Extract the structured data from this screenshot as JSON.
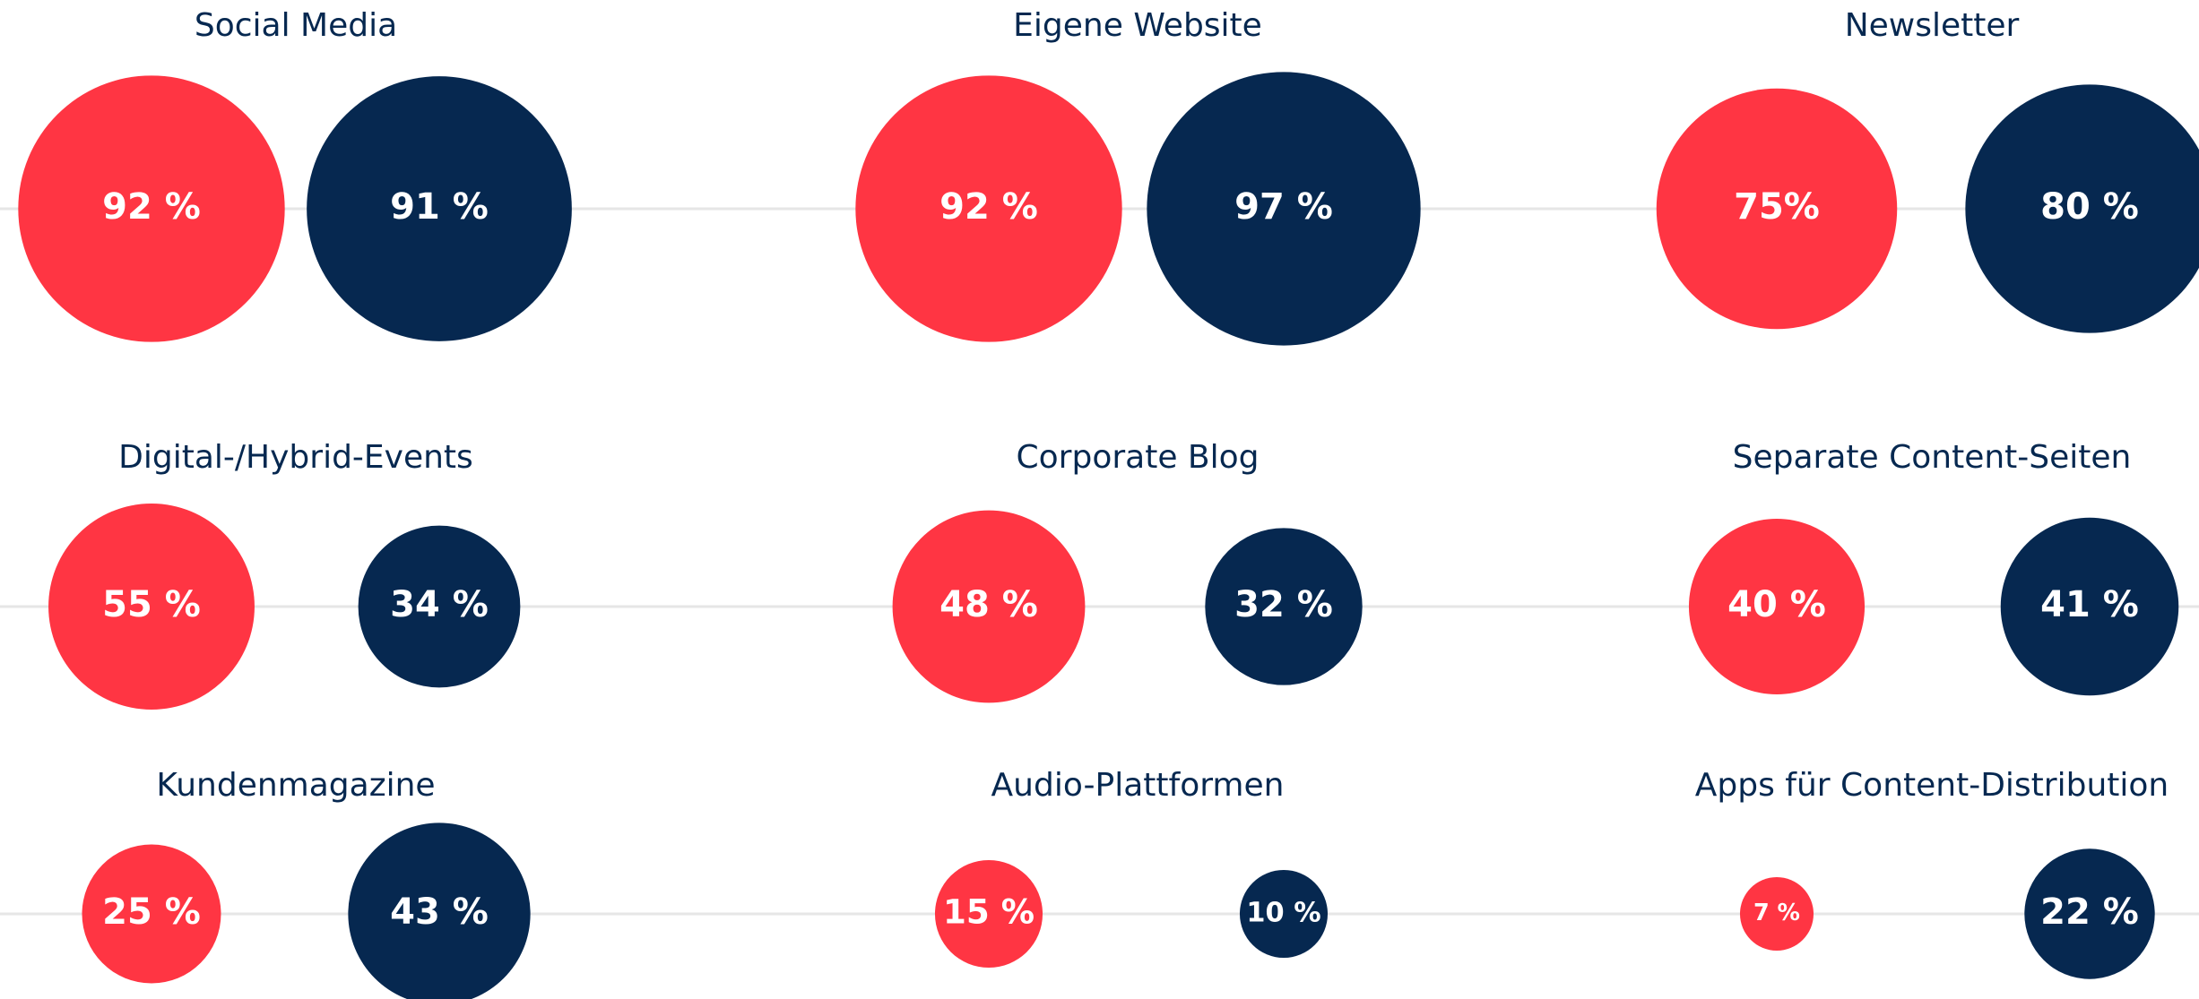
{
  "chart_data": {
    "type": "bubble",
    "categories": [
      "Social Media",
      "Eigene Website",
      "Newsletter",
      "Digital-/Hybrid-Events",
      "Corporate Blog",
      "Separate Content-Seiten",
      "Kundenmagazine",
      "Audio-Plattformen",
      "Apps für Content-Distribution"
    ],
    "series": [
      {
        "color": "#ff3543",
        "values": [
          92,
          92,
          75,
          55,
          48,
          40,
          25,
          15,
          7
        ],
        "value_labels": [
          "92 %",
          "92 %",
          "75%",
          "55 %",
          "48 %",
          "40 %",
          "25 %",
          "15 %",
          "7 %"
        ]
      },
      {
        "color": "#062850",
        "values": [
          91,
          97,
          80,
          34,
          32,
          41,
          43,
          10,
          22
        ],
        "value_labels": [
          "91 %",
          "97 %",
          "80 %",
          "34 %",
          "32 %",
          "41 %",
          "43 %",
          "10 %",
          "22 %"
        ]
      }
    ]
  }
}
